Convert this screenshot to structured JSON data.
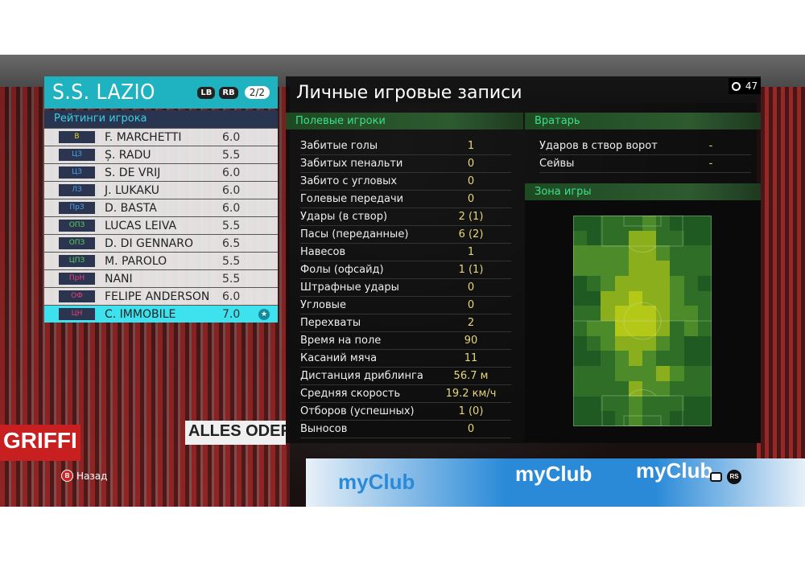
{
  "team": {
    "name": "S.S. LAZIO",
    "lb": "LB",
    "rb": "RB",
    "page": "2/2",
    "ratings_title": "Рейтинги игрока"
  },
  "players": [
    {
      "pos": "В",
      "name": "F. MARCHETTI",
      "rating": "6.0",
      "pos_color": "#e8d030"
    },
    {
      "pos": "ЦЗ",
      "name": "Ș. RADU",
      "rating": "5.5",
      "pos_color": "#4aa0e8"
    },
    {
      "pos": "ЦЗ",
      "name": "S. DE VRIJ",
      "rating": "6.0",
      "pos_color": "#4aa0e8"
    },
    {
      "pos": "ЛЗ",
      "name": "J. LUKAKU",
      "rating": "6.0",
      "pos_color": "#4aa0e8"
    },
    {
      "pos": "ПрЗ",
      "name": "D. BASTA",
      "rating": "6.0",
      "pos_color": "#4aa0e8"
    },
    {
      "pos": "ОПЗ",
      "name": "LUCAS LEIVA",
      "rating": "5.5",
      "pos_color": "#5cd05c"
    },
    {
      "pos": "ОПЗ",
      "name": "D. DI GENNARO",
      "rating": "6.5",
      "pos_color": "#5cd05c"
    },
    {
      "pos": "ЦПЗ",
      "name": "M. PAROLO",
      "rating": "5.5",
      "pos_color": "#5cd05c"
    },
    {
      "pos": "ПрН",
      "name": "NANI",
      "rating": "5.5",
      "pos_color": "#e8407a"
    },
    {
      "pos": "ОФ",
      "name": "FELIPE ANDERSON",
      "rating": "6.0",
      "pos_color": "#e8407a"
    },
    {
      "pos": "ЦН",
      "name": "C. IMMOBILE",
      "rating": "7.0",
      "pos_color": "#e8407a",
      "selected": true,
      "star": true
    }
  ],
  "main": {
    "title": "Личные игровые записи",
    "timer": "47"
  },
  "field_players": {
    "title": "Полевые игроки",
    "rows": [
      {
        "label": "Забитые голы",
        "value": "1"
      },
      {
        "label": "Забитых пенальти",
        "value": "0"
      },
      {
        "label": "Забито с угловых",
        "value": "0"
      },
      {
        "label": "Голевые передачи",
        "value": "0"
      },
      {
        "label": "Удары (в створ)",
        "value": "2 (1)"
      },
      {
        "label": "Пасы (переданные)",
        "value": "6 (2)"
      },
      {
        "label": "Навесов",
        "value": "1"
      },
      {
        "label": "Фолы (офсайд)",
        "value": "1 (1)"
      },
      {
        "label": "Штрафные удары",
        "value": "0"
      },
      {
        "label": "Угловые",
        "value": "0"
      },
      {
        "label": "Перехваты",
        "value": "2"
      },
      {
        "label": "Время на поле",
        "value": "90"
      },
      {
        "label": "Касаний мяча",
        "value": "11"
      },
      {
        "label": "Дистанция дриблинга",
        "value": "56.7 м"
      },
      {
        "label": "Средняя скорость",
        "value": "19.2 км/ч"
      },
      {
        "label": "Отборов (успешных)",
        "value": "1 (0)"
      },
      {
        "label": "Выносов",
        "value": "0"
      }
    ]
  },
  "goalkeeper": {
    "title": "Вратарь",
    "rows": [
      {
        "label": "Ударов в створ ворот",
        "value": "-"
      },
      {
        "label": "Сейвы",
        "value": "-"
      }
    ]
  },
  "zone": {
    "title": "Зона игры",
    "heat_levels": [
      [
        0,
        0,
        1,
        1,
        1,
        2,
        1,
        0,
        0,
        0
      ],
      [
        1,
        0,
        1,
        1,
        3,
        3,
        1,
        1,
        0,
        0
      ],
      [
        2,
        2,
        2,
        2,
        3,
        3,
        2,
        1,
        1,
        1
      ],
      [
        2,
        2,
        2,
        2,
        3,
        3,
        3,
        1,
        1,
        1
      ],
      [
        0,
        1,
        2,
        3,
        3,
        3,
        3,
        2,
        1,
        0
      ],
      [
        0,
        0,
        3,
        3,
        4,
        3,
        3,
        2,
        1,
        1
      ],
      [
        1,
        1,
        3,
        4,
        4,
        4,
        3,
        2,
        2,
        1
      ],
      [
        1,
        2,
        2,
        4,
        4,
        4,
        3,
        1,
        2,
        1
      ],
      [
        0,
        1,
        2,
        3,
        3,
        3,
        2,
        1,
        0,
        0
      ],
      [
        0,
        0,
        1,
        2,
        3,
        2,
        1,
        1,
        0,
        0
      ],
      [
        1,
        1,
        1,
        2,
        2,
        2,
        3,
        2,
        1,
        1
      ],
      [
        1,
        1,
        1,
        1,
        3,
        2,
        2,
        1,
        1,
        1
      ],
      [
        0,
        0,
        1,
        1,
        2,
        1,
        1,
        1,
        0,
        0
      ],
      [
        0,
        0,
        0,
        1,
        2,
        1,
        1,
        0,
        0,
        0
      ]
    ],
    "heat_colors": [
      "#1f5a22",
      "#2e6e26",
      "#4c8a2a",
      "#8aae1c",
      "#b4c818"
    ]
  },
  "footer": {
    "back_button": "B",
    "back_label": "Назад",
    "rs": "RS"
  },
  "scene": {
    "banner": "ALLES ODER NICHTS",
    "banner2": "GRIFFI",
    "board": "myClub"
  }
}
